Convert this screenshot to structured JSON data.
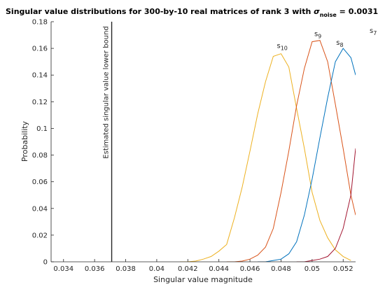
{
  "chart_data": {
    "type": "line",
    "title": {
      "prefix": "Singular value distributions for 300-by-10 real matrices of rank 3 with ",
      "sigma": "σ",
      "sigma_sub": "noise",
      "suffix": " = 0.0031"
    },
    "xlabel": "Singular value magnitude",
    "ylabel": "Probability",
    "xlim": [
      0.0332,
      0.0528
    ],
    "ylim": [
      0,
      0.18
    ],
    "xticks": [
      "0.034",
      "0.036",
      "0.038",
      "0.04",
      "0.042",
      "0.044",
      "0.046",
      "0.048",
      "0.05",
      "0.052"
    ],
    "yticks": [
      "0",
      "0.02",
      "0.04",
      "0.06",
      "0.08",
      "0.1",
      "0.12",
      "0.14",
      "0.16",
      "0.18"
    ],
    "grid": false,
    "vline": {
      "x": 0.0371,
      "label": "Estimated singular value lower bound"
    },
    "series": [
      {
        "name": "s10",
        "label_base": "s",
        "label_sub": "10",
        "color": "#EDB120",
        "x": [
          0.0415,
          0.042,
          0.0425,
          0.043,
          0.0435,
          0.044,
          0.0445,
          0.045,
          0.0455,
          0.046,
          0.0465,
          0.047,
          0.0475,
          0.048,
          0.0485,
          0.049,
          0.0495,
          0.05,
          0.0505,
          0.051,
          0.0515,
          0.052,
          0.0525
        ],
        "values": [
          0.0,
          0.0,
          0.0005,
          0.002,
          0.004,
          0.008,
          0.013,
          0.033,
          0.056,
          0.083,
          0.111,
          0.135,
          0.154,
          0.156,
          0.146,
          0.115,
          0.085,
          0.052,
          0.031,
          0.018,
          0.009,
          0.004,
          0.001
        ]
      },
      {
        "name": "s9",
        "label_base": "s",
        "label_sub": "9",
        "color": "#D95319",
        "x": [
          0.0445,
          0.045,
          0.0455,
          0.046,
          0.0465,
          0.047,
          0.0475,
          0.048,
          0.0485,
          0.049,
          0.0495,
          0.05,
          0.0505,
          0.051,
          0.0515,
          0.052,
          0.0525,
          0.0528
        ],
        "values": [
          0.0,
          0.0,
          0.0005,
          0.002,
          0.005,
          0.011,
          0.025,
          0.052,
          0.083,
          0.117,
          0.145,
          0.165,
          0.166,
          0.15,
          0.118,
          0.085,
          0.05,
          0.035
        ]
      },
      {
        "name": "s8",
        "label_base": "s",
        "label_sub": "8",
        "color": "#0072BD",
        "x": [
          0.0465,
          0.047,
          0.0475,
          0.048,
          0.0485,
          0.049,
          0.0495,
          0.05,
          0.0505,
          0.051,
          0.0515,
          0.052,
          0.0525,
          0.0528
        ],
        "values": [
          0.0,
          0.0,
          0.001,
          0.002,
          0.006,
          0.015,
          0.035,
          0.062,
          0.093,
          0.123,
          0.15,
          0.16,
          0.153,
          0.14
        ]
      },
      {
        "name": "s7",
        "label_base": "s",
        "label_sub": "7",
        "color": "#A2142F",
        "x": [
          0.049,
          0.0495,
          0.05,
          0.0505,
          0.051,
          0.0515,
          0.052,
          0.0525,
          0.0528
        ],
        "values": [
          0.0,
          0.0,
          0.001,
          0.002,
          0.004,
          0.01,
          0.025,
          0.05,
          0.085
        ]
      }
    ]
  }
}
